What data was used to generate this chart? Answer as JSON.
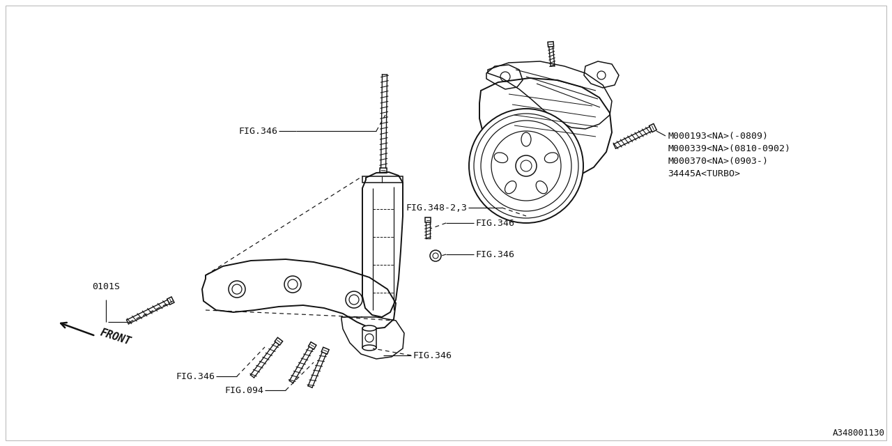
{
  "bg_color": "#ffffff",
  "line_color": "#111111",
  "text_color": "#111111",
  "diagram_id": "A348001130",
  "labels": {
    "fig346_top": "FIG.346",
    "fig346_mid1": "FIG.346",
    "fig346_mid2": "FIG.346",
    "fig346_bot1": "FIG.346",
    "fig346_bot2": "FIG.346",
    "fig348": "FIG.348-2,3",
    "fig094": "FIG.094",
    "part1": "M000193<NA>(-0809)",
    "part2": "M000339<NA>(0810-0902)",
    "part3": "M000370<NA>(0903-)",
    "part4": "34445A<TURBO>",
    "label_0101s": "0101S",
    "label_front": "FRONT"
  },
  "font_size": 9.5,
  "lw": 1.1
}
